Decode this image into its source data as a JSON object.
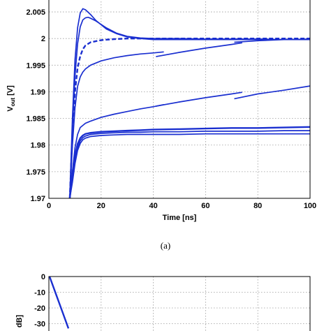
{
  "chart_data": [
    {
      "type": "line",
      "xlabel": "Time [ns]",
      "ylabel_main": "V",
      "ylabel_sub": "out",
      "ylabel_unit": " [V]",
      "xlim": [
        0,
        100
      ],
      "ylim": [
        1.97,
        2.0075
      ],
      "x_ticks": [
        0,
        20,
        40,
        60,
        80,
        100
      ],
      "x_tick_labels": [
        "0",
        "20",
        "40",
        "60",
        "80",
        "100"
      ],
      "y_ticks": [
        1.97,
        1.975,
        1.98,
        1.985,
        1.99,
        1.995,
        2,
        2.005
      ],
      "y_tick_labels": [
        "1.97",
        "1.975",
        "1.98",
        "1.985",
        "1.99",
        "1.995",
        "2",
        "2.005"
      ],
      "grid": true,
      "caption": "(a)",
      "line_color": "#1a2fd0",
      "series": [
        {
          "style": "solid",
          "x": [
            8,
            9,
            10,
            11,
            12,
            13,
            14,
            16,
            18,
            22,
            26,
            30,
            35,
            40,
            50,
            60,
            70,
            80,
            90,
            100
          ],
          "y": [
            1.97,
            1.985,
            1.996,
            2.002,
            2.0048,
            2.0056,
            2.0054,
            2.0045,
            2.0034,
            2.0018,
            2.0009,
            2.0003,
            2.0,
            1.9998,
            1.9998,
            1.9998,
            1.9998,
            1.9998,
            1.9998,
            1.9998
          ]
        },
        {
          "style": "solid",
          "x": [
            8,
            9,
            10,
            11,
            12,
            13,
            14,
            15,
            16,
            18,
            22,
            26,
            30,
            35,
            40,
            50,
            60,
            70,
            80,
            90,
            100
          ],
          "y": [
            1.97,
            1.983,
            1.993,
            1.999,
            2.0022,
            2.0035,
            2.0039,
            2.004,
            2.0038,
            2.0033,
            2.002,
            2.001,
            2.0004,
            2.0001,
            2.0,
            2.0,
            1.9999,
            1.9999,
            1.9999,
            1.9998,
            1.9998
          ]
        },
        {
          "style": "dashed",
          "x": [
            8,
            9,
            10,
            11,
            12,
            13,
            14,
            16,
            20,
            25,
            30,
            35,
            40,
            50,
            60,
            70,
            80,
            90,
            100
          ],
          "y": [
            1.97,
            1.982,
            1.99,
            1.9945,
            1.9967,
            1.998,
            1.9987,
            1.9993,
            1.9997,
            1.9999,
            2.0,
            2.0,
            2.0,
            2.0,
            2.0,
            2.0,
            2.0,
            2.0,
            2.0
          ]
        },
        {
          "style": "solid",
          "x": [
            8,
            9,
            10,
            11,
            12,
            13,
            14,
            16,
            20,
            25,
            30,
            35,
            40,
            44
          ],
          "y": [
            1.97,
            1.98,
            1.987,
            1.991,
            1.9928,
            1.9937,
            1.9943,
            1.995,
            1.9958,
            1.9964,
            1.9968,
            1.9971,
            1.9973,
            1.9975
          ]
        },
        {
          "style": "solid",
          "x": [
            41,
            50,
            60,
            70,
            74
          ],
          "y": [
            1.9966,
            1.9974,
            1.9982,
            1.9989,
            1.9992
          ]
        },
        {
          "style": "solid",
          "x": [
            71,
            80,
            90,
            100
          ],
          "y": [
            1.9993,
            1.9996,
            1.9998,
            1.9999
          ]
        },
        {
          "style": "solid",
          "x": [
            8,
            9,
            10,
            11,
            12,
            14,
            16,
            20,
            25,
            30,
            35,
            40,
            44
          ],
          "y": [
            1.97,
            1.975,
            1.9795,
            1.982,
            1.9833,
            1.9841,
            1.9845,
            1.9852,
            1.9858,
            1.9863,
            1.9868,
            1.9872,
            1.9876
          ]
        },
        {
          "style": "solid",
          "x": [
            41,
            50,
            60,
            70,
            74
          ],
          "y": [
            1.9873,
            1.9881,
            1.9889,
            1.9896,
            1.9899
          ]
        },
        {
          "style": "solid",
          "x": [
            71,
            80,
            90,
            100
          ],
          "y": [
            1.9887,
            1.9896,
            1.9903,
            1.9911
          ]
        },
        {
          "style": "bottom",
          "x": [
            8,
            9,
            10,
            11,
            12,
            13,
            14,
            16,
            20,
            25,
            30,
            35,
            40,
            50,
            60,
            70,
            80,
            90,
            100
          ],
          "y": [
            1.97,
            1.9745,
            1.978,
            1.9802,
            1.9813,
            1.9818,
            1.9821,
            1.9823,
            1.9825,
            1.9826,
            1.9827,
            1.9828,
            1.9829,
            1.983,
            1.9831,
            1.9832,
            1.9832,
            1.9833,
            1.9834
          ]
        },
        {
          "style": "solid",
          "x": [
            8,
            9,
            10,
            11,
            12,
            13,
            14,
            16,
            20,
            25,
            30,
            35,
            40,
            50,
            60,
            70,
            80,
            90,
            100
          ],
          "y": [
            1.97,
            1.9738,
            1.9772,
            1.9795,
            1.9808,
            1.9814,
            1.9817,
            1.982,
            1.9822,
            1.9823,
            1.9824,
            1.9824,
            1.9825,
            1.9825,
            1.9826,
            1.9826,
            1.9826,
            1.9827,
            1.9827
          ]
        },
        {
          "style": "solid",
          "x": [
            8,
            9,
            10,
            11,
            12,
            13,
            14,
            16,
            20,
            25,
            30,
            35,
            40,
            50,
            60,
            70,
            80,
            90,
            100
          ],
          "y": [
            1.97,
            1.973,
            1.9765,
            1.979,
            1.9803,
            1.981,
            1.9813,
            1.9816,
            1.9818,
            1.9819,
            1.982,
            1.982,
            1.982,
            1.982,
            1.9821,
            1.9821,
            1.9821,
            1.9821,
            1.9821
          ]
        }
      ]
    },
    {
      "type": "line",
      "xlabel": "",
      "ylabel_visible": "dB]",
      "y_ticks": [
        0,
        -10,
        -20,
        -30
      ],
      "y_tick_labels": [
        "0",
        "-10",
        "-20",
        "-30"
      ],
      "grid": true,
      "line_color": "#1a2fd0",
      "series": [
        {
          "style": "bottom",
          "x": [
            0,
            1,
            2,
            3
          ],
          "y": [
            0,
            -11,
            -22,
            -33
          ]
        }
      ]
    }
  ]
}
